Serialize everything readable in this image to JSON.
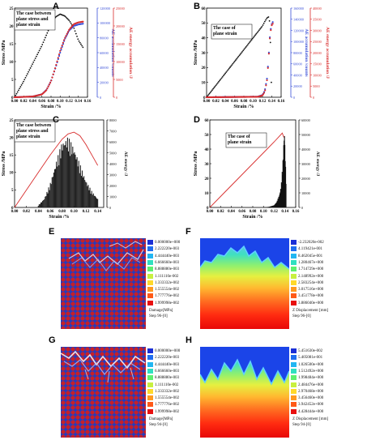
{
  "panels": {
    "A": {
      "label": "A",
      "annotation": [
        "The case between",
        "plane stress and",
        "plane strain"
      ]
    },
    "B": {
      "label": "B",
      "annotation": [
        "The case of",
        "plane strain"
      ]
    },
    "C": {
      "label": "C",
      "annotation": [
        "The case between",
        "plane stress and",
        "plane strain"
      ]
    },
    "D": {
      "label": "D",
      "annotation": [
        "The case of",
        "plane strain"
      ]
    },
    "E": {
      "label": "E",
      "legend_values": [
        "0.000000e+000",
        "2.222220e-003",
        "4.444440e-003",
        "6.666660e-003",
        "8.888880e-003",
        "1.111110e-002",
        "1.333332e-002",
        "1.555554e-002",
        "1.777776e-002",
        "1.999998e-002"
      ],
      "legend_title": "Damage[MPa]",
      "legend_step": "Step 96-[0]"
    },
    "F": {
      "label": "F",
      "legend_values": [
        "-2.232020e-002",
        "4.119421e-001",
        "8.462045e-001",
        "1.280467e+000",
        "1.714729e+000",
        "2.148992e+000",
        "2.583254e+000",
        "3.017516e+000",
        "3.451778e+000",
        "3.886040e+000"
      ],
      "legend_title": "Z Displacement [mm]",
      "legend_step": "Step 96-[0]"
    },
    "G": {
      "label": "G",
      "legend_values": [
        "0.000000e+000",
        "2.222220e-003",
        "4.444440e-003",
        "6.666660e-003",
        "8.888880e-003",
        "1.111110e-002",
        "1.333332e-002",
        "1.555554e-002",
        "1.777776e-002",
        "1.999998e-002"
      ],
      "legend_title": "Damage[MPa]",
      "legend_step": "Step 94-[0]"
    },
    "H": {
      "label": "H",
      "legend_values": [
        "5.451630e-002",
        "5.405081e-001",
        "1.026500e+000",
        "1.512492e+000",
        "1.998484e+000",
        "2.484476e+000",
        "2.970468e+000",
        "3.456460e+000",
        "3.942452e+000",
        "4.428444e+000"
      ],
      "legend_title": "Z Displacement [mm]",
      "legend_step": "Step 94-[0]"
    }
  },
  "chart_data": [
    {
      "id": "A",
      "type": "line",
      "xlabel": "Strain /%",
      "ylabel": "Stress /MPa",
      "y2label": "AE accumulation /counts",
      "y3label": "AE energy accumulation /J",
      "xlim": [
        0,
        0.16
      ],
      "ylim": [
        0,
        25
      ],
      "y2lim": [
        0,
        120000
      ],
      "y3lim": [
        0,
        25000
      ],
      "xticks": [
        0.0,
        0.02,
        0.04,
        0.06,
        0.08,
        0.1,
        0.12,
        0.14,
        0.16
      ],
      "yticks": [
        0,
        5,
        10,
        15,
        20,
        25
      ],
      "y2ticks": [
        0,
        20000,
        40000,
        60000,
        80000,
        100000,
        120000
      ],
      "y3ticks": [
        0,
        5000,
        10000,
        15000,
        20000,
        25000
      ],
      "colors": {
        "stress": "#111111",
        "counts": "#3a50d8",
        "energy": "#d82c2c"
      },
      "series": [
        {
          "name": "stress",
          "axis": "y",
          "x": [
            0,
            0.02,
            0.04,
            0.06,
            0.07,
            0.08,
            0.09,
            0.1,
            0.11,
            0.12,
            0.13,
            0.14,
            0.15
          ],
          "values": [
            0,
            4.5,
            9.5,
            14.5,
            17.5,
            20.5,
            22.5,
            23.3,
            22.8,
            21.5,
            19.5,
            16,
            14
          ]
        },
        {
          "name": "counts",
          "axis": "y2",
          "x": [
            0,
            0.04,
            0.06,
            0.07,
            0.08,
            0.09,
            0.1,
            0.11,
            0.12,
            0.13,
            0.14,
            0.15
          ],
          "values": [
            0,
            1000,
            4000,
            10000,
            22000,
            40000,
            60000,
            78000,
            90000,
            96000,
            98000,
            99000
          ]
        },
        {
          "name": "energy",
          "axis": "y3",
          "x": [
            0,
            0.04,
            0.06,
            0.07,
            0.08,
            0.09,
            0.1,
            0.11,
            0.12,
            0.13,
            0.14,
            0.15
          ],
          "values": [
            0,
            200,
            800,
            2000,
            4500,
            8500,
            13000,
            16500,
            19000,
            20500,
            21000,
            21200
          ]
        }
      ]
    },
    {
      "id": "B",
      "type": "line",
      "xlabel": "Strain /%",
      "ylabel": "Stress /MPa",
      "y2label": "AE accumulation /counts",
      "y3label": "AE energy accumulation /J",
      "xlim": [
        0,
        0.16
      ],
      "ylim": [
        0,
        60
      ],
      "y2lim": [
        0,
        160000
      ],
      "y3lim": [
        0,
        40000
      ],
      "xticks": [
        0.0,
        0.02,
        0.04,
        0.06,
        0.08,
        0.1,
        0.12,
        0.14,
        0.16
      ],
      "yticks": [
        0,
        10,
        20,
        30,
        40,
        50,
        60
      ],
      "y2ticks": [
        0,
        20000,
        40000,
        60000,
        80000,
        100000,
        120000,
        140000,
        160000
      ],
      "y3ticks": [
        0,
        5000,
        10000,
        15000,
        20000,
        25000,
        30000,
        35000,
        40000
      ],
      "colors": {
        "stress": "#111111",
        "counts": "#3a50d8",
        "energy": "#d82c2c"
      },
      "series": [
        {
          "name": "stress",
          "axis": "y",
          "x": [
            0,
            0.02,
            0.04,
            0.06,
            0.08,
            0.1,
            0.12,
            0.125,
            0.13,
            0.133,
            0.136,
            0.139
          ],
          "values": [
            0,
            8,
            16,
            24,
            32,
            40,
            48,
            51,
            53.5,
            54,
            50,
            10
          ]
        },
        {
          "name": "counts",
          "axis": "y2",
          "x": [
            0,
            0.11,
            0.12,
            0.125,
            0.13,
            0.133,
            0.136,
            0.139,
            0.142
          ],
          "values": [
            0,
            1000,
            4000,
            12000,
            35000,
            70000,
            110000,
            130000,
            135000
          ]
        },
        {
          "name": "energy",
          "axis": "y3",
          "x": [
            0,
            0.11,
            0.12,
            0.125,
            0.13,
            0.133,
            0.136,
            0.139,
            0.142
          ],
          "values": [
            0,
            200,
            800,
            2500,
            8000,
            17000,
            27000,
            32000,
            33000
          ]
        }
      ]
    },
    {
      "id": "C",
      "type": "bar",
      "xlabel": "Strain /%",
      "ylabel": "Stress /MPa",
      "y2label": "AE energy /J",
      "xlim": [
        0,
        0.15
      ],
      "ylim": [
        0,
        25
      ],
      "y2lim": [
        0,
        8000
      ],
      "xticks": [
        0.0,
        0.02,
        0.04,
        0.06,
        0.08,
        0.1,
        0.12,
        0.14
      ],
      "yticks": [
        0,
        5,
        10,
        15,
        20,
        25
      ],
      "y2ticks": [
        0,
        1000,
        2000,
        3000,
        4000,
        5000,
        6000,
        7000,
        8000
      ],
      "colors": {
        "stress": "#d82c2c",
        "bars": "#222222"
      },
      "series": [
        {
          "name": "stress",
          "axis": "y",
          "x": [
            0,
            0.02,
            0.04,
            0.06,
            0.08,
            0.09,
            0.1,
            0.11,
            0.12,
            0.13,
            0.14
          ],
          "values": [
            0,
            5,
            10,
            15,
            19.5,
            21,
            21.5,
            20.5,
            18,
            15,
            12
          ]
        },
        {
          "name": "AE energy",
          "axis": "y2",
          "x": [
            0.04,
            0.05,
            0.06,
            0.07,
            0.08,
            0.09,
            0.1,
            0.11,
            0.12,
            0.13,
            0.14
          ],
          "values": [
            200,
            800,
            2200,
            4200,
            6000,
            6500,
            5500,
            4000,
            2500,
            1500,
            800
          ]
        }
      ]
    },
    {
      "id": "D",
      "type": "bar",
      "xlabel": "Strain /%",
      "ylabel": "Stress /MPa",
      "y2label": "AE energy /J",
      "xlim": [
        0,
        0.16
      ],
      "ylim": [
        0,
        60
      ],
      "y2lim": [
        0,
        60000
      ],
      "xticks": [
        0.0,
        0.02,
        0.04,
        0.06,
        0.08,
        0.1,
        0.12,
        0.14,
        0.16
      ],
      "yticks": [
        0,
        10,
        20,
        30,
        40,
        50,
        60
      ],
      "y2ticks": [
        0,
        10000,
        20000,
        30000,
        40000,
        50000,
        60000
      ],
      "colors": {
        "stress": "#d82c2c",
        "bars": "#111111"
      },
      "series": [
        {
          "name": "stress",
          "axis": "y",
          "x": [
            0,
            0.02,
            0.04,
            0.06,
            0.08,
            0.1,
            0.12,
            0.13,
            0.135,
            0.138
          ],
          "values": [
            0,
            7.5,
            15,
            22.5,
            30,
            37.5,
            45,
            49,
            51,
            48
          ]
        },
        {
          "name": "AE energy",
          "axis": "y2",
          "x": [
            0.1,
            0.11,
            0.12,
            0.125,
            0.13,
            0.133,
            0.136,
            0.139,
            0.142
          ],
          "values": [
            100,
            400,
            1500,
            4000,
            9000,
            15000,
            30000,
            55000,
            20000
          ]
        }
      ]
    }
  ]
}
